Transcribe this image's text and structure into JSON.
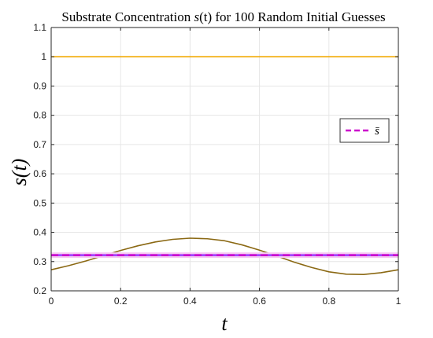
{
  "chart_data": {
    "type": "line",
    "title": "Substrate Concentration s(t) for 100 Random Initial Guesses",
    "title_parts": {
      "prefix": "Substrate Concentration ",
      "var": "s",
      "arg": "(t)",
      "suffix": " for 100 Random Initial Guesses"
    },
    "xlabel": "t",
    "ylabel": "s(t)",
    "xlim": [
      0,
      1
    ],
    "ylim": [
      0.2,
      1.1
    ],
    "x_ticks": [
      0,
      0.2,
      0.4,
      0.6,
      0.8,
      1
    ],
    "x_tick_labels": [
      "0",
      "0.2",
      "0.4",
      "0.6",
      "0.8",
      "1"
    ],
    "y_ticks": [
      0.2,
      0.3,
      0.4,
      0.5,
      0.6,
      0.7,
      0.8,
      0.9,
      1,
      1.1
    ],
    "y_tick_labels": [
      "0.2",
      "0.3",
      "0.4",
      "0.5",
      "0.6",
      "0.7",
      "0.8",
      "0.9",
      "1",
      "1.1"
    ],
    "grid": true,
    "legend": {
      "placement": "right",
      "entries": [
        {
          "label": "s̄",
          "series": "s_bar"
        }
      ]
    },
    "series": [
      {
        "id": "upper",
        "color": "#f2a900",
        "style": "solid",
        "x": [
          0,
          0.2,
          0.4,
          0.6,
          0.8,
          1
        ],
        "y": [
          1.0,
          1.0,
          1.0,
          1.0,
          1.0,
          1.0
        ]
      },
      {
        "id": "lower",
        "color": "#8b6914",
        "style": "solid",
        "x": [
          0,
          0.05,
          0.1,
          0.15,
          0.2,
          0.25,
          0.3,
          0.35,
          0.4,
          0.45,
          0.5,
          0.55,
          0.6,
          0.65,
          0.7,
          0.75,
          0.8,
          0.85,
          0.9,
          0.95,
          1
        ],
        "y": [
          0.272,
          0.286,
          0.302,
          0.32,
          0.338,
          0.354,
          0.367,
          0.376,
          0.38,
          0.378,
          0.371,
          0.357,
          0.339,
          0.319,
          0.298,
          0.28,
          0.265,
          0.257,
          0.256,
          0.262,
          0.272
        ]
      },
      {
        "id": "s_bar",
        "name": "s̄",
        "color": "#cc00cc",
        "highlight_color": "#9b3cff",
        "style": "dashed",
        "x": [
          0,
          1
        ],
        "y": [
          0.322,
          0.322
        ]
      }
    ]
  }
}
